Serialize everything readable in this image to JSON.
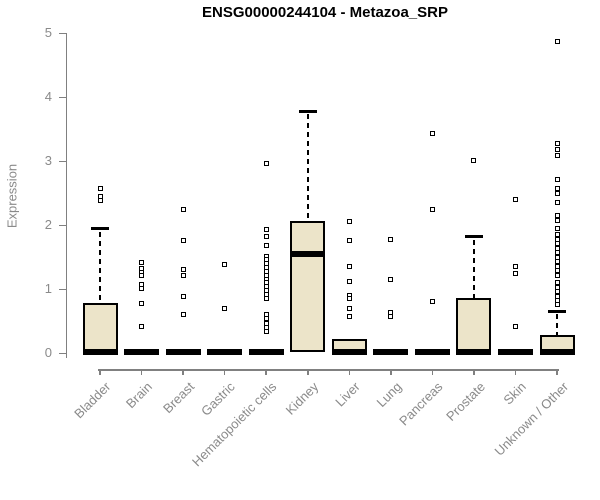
{
  "chart_data": {
    "type": "boxplot",
    "title": "ENSG00000244104 - Metazoa_SRP",
    "ylabel": "Expression",
    "xlabel": "",
    "ylim": [
      0,
      5
    ],
    "yticks": [
      "0",
      "1",
      "2",
      "3",
      "4",
      "5"
    ],
    "grid": false,
    "legend": "none",
    "categories": [
      "Bladder",
      "Brain",
      "Breast",
      "Gastric",
      "Hematopoietic cells",
      "Kidney",
      "Liver",
      "Lung",
      "Pancreas",
      "Prostate",
      "Skin",
      "Unknown / Other"
    ],
    "boxes": [
      {
        "category": "Bladder",
        "q1": 0,
        "median": 0.02,
        "q3": 0.79,
        "whisker_low": 0,
        "whisker_high": 1.95,
        "outliers": [
          2.57,
          2.45,
          2.39
        ]
      },
      {
        "category": "Brain",
        "q1": 0,
        "median": 0.02,
        "q3": 0.04,
        "whisker_low": 0,
        "whisker_high": 0.04,
        "outliers": [
          1.42,
          1.33,
          1.27,
          1.22,
          1.08,
          1.02,
          0.78,
          0.42
        ]
      },
      {
        "category": "Breast",
        "q1": 0,
        "median": 0.02,
        "q3": 0.04,
        "whisker_low": 0,
        "whisker_high": 0.04,
        "outliers": [
          2.25,
          1.77,
          1.31,
          1.21,
          0.88,
          0.6
        ]
      },
      {
        "category": "Gastric",
        "q1": 0,
        "median": 0.02,
        "q3": 0.04,
        "whisker_low": 0,
        "whisker_high": 0.04,
        "outliers": [
          1.38,
          0.7
        ]
      },
      {
        "category": "Hematopoietic cells",
        "q1": 0,
        "median": 0.02,
        "q3": 0.04,
        "whisker_low": 0,
        "whisker_high": 0.04,
        "outliers": [
          2.97,
          1.93,
          1.82,
          1.68,
          1.52,
          1.46,
          1.4,
          1.34,
          1.28,
          1.22,
          1.16,
          1.1,
          1.04,
          0.98,
          0.92,
          0.86,
          0.6,
          0.54,
          0.47,
          0.41,
          0.34
        ]
      },
      {
        "category": "Kidney",
        "q1": 0.02,
        "median": 1.55,
        "q3": 2.06,
        "whisker_low": 0.02,
        "whisker_high": 3.78,
        "outliers": []
      },
      {
        "category": "Liver",
        "q1": 0,
        "median": 0.02,
        "q3": 0.22,
        "whisker_low": 0,
        "whisker_high": 0.22,
        "outliers": [
          2.06,
          1.77,
          1.35,
          1.12,
          0.9,
          0.86,
          0.7,
          0.57
        ]
      },
      {
        "category": "Lung",
        "q1": 0,
        "median": 0.02,
        "q3": 0.04,
        "whisker_low": 0,
        "whisker_high": 0.04,
        "outliers": [
          1.78,
          1.16,
          0.63,
          0.57
        ]
      },
      {
        "category": "Pancreas",
        "q1": 0,
        "median": 0.02,
        "q3": 0.04,
        "whisker_low": 0,
        "whisker_high": 0.04,
        "outliers": [
          3.43,
          2.25,
          0.81
        ]
      },
      {
        "category": "Prostate",
        "q1": 0,
        "median": 0.02,
        "q3": 0.86,
        "whisker_low": 0,
        "whisker_high": 1.82,
        "outliers": [
          3.01
        ]
      },
      {
        "category": "Skin",
        "q1": 0,
        "median": 0.02,
        "q3": 0.04,
        "whisker_low": 0,
        "whisker_high": 0.04,
        "outliers": [
          2.4,
          1.35,
          1.24,
          0.42
        ]
      },
      {
        "category": "Unknown / Other",
        "q1": 0,
        "median": 0.02,
        "q3": 0.28,
        "whisker_low": 0,
        "whisker_high": 0.66,
        "outliers": [
          4.87,
          3.28,
          3.18,
          3.09,
          2.71,
          2.57,
          2.5,
          2.36,
          2.16,
          2.08,
          1.95,
          1.85,
          1.78,
          1.71,
          1.64,
          1.57,
          1.5,
          1.43,
          1.36,
          1.29,
          1.22,
          1.1,
          1.03,
          0.96,
          0.89,
          0.82,
          0.76
        ]
      }
    ],
    "colors": {
      "box_fill": "#ece4c9",
      "box_border": "#000000",
      "median": "#000000",
      "whisker": "#000000",
      "outlier_fill": "#ffffff",
      "axis": "#808080",
      "tick_label": "#8a8a8a",
      "title": "#000000"
    }
  }
}
